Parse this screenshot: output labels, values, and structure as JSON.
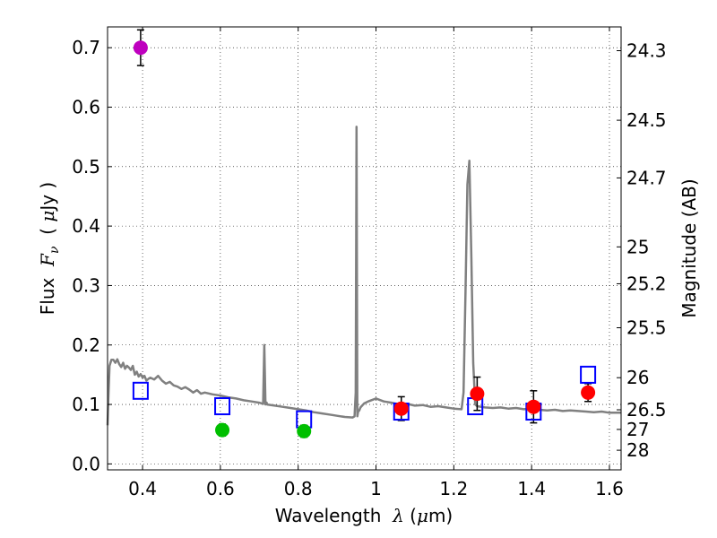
{
  "chart_data": {
    "type": "scatter",
    "xlabel_prefix": "Wavelength  ",
    "xlabel_symbol": "λ",
    "xlabel_unit_open": " (",
    "xlabel_unit_mu": "μ",
    "xlabel_unit_close": "m)",
    "ylabel_prefix": "Flux  ",
    "ylabel_symbol": "F",
    "ylabel_subscript": "ν",
    "ylabel_unit_open": "  ( ",
    "ylabel_unit_mu": "μ",
    "ylabel_unit_close": "Jy )",
    "y2label": "Magnitude (AB)",
    "xlim": [
      0.31,
      1.63
    ],
    "ylim": [
      -0.01,
      0.735
    ],
    "grid": true,
    "grid_style": "dotted",
    "x_ticks": [
      0.4,
      0.6,
      0.8,
      1.0,
      1.2,
      1.4,
      1.6
    ],
    "x_tick_labels": [
      "0.4",
      "0.6",
      "0.8",
      "1",
      "1.2",
      "1.4",
      "1.6"
    ],
    "y_ticks": [
      0.0,
      0.1,
      0.2,
      0.3,
      0.4,
      0.5,
      0.6,
      0.7
    ],
    "y_tick_labels": [
      "0.0",
      "0.1",
      "0.2",
      "0.3",
      "0.4",
      "0.5",
      "0.6",
      "0.7"
    ],
    "mag_ticks": [
      {
        "label": "24.3",
        "flux": 0.695
      },
      {
        "label": "24.5",
        "flux": 0.578
      },
      {
        "label": "24.7",
        "flux": 0.481
      },
      {
        "label": "25",
        "flux": 0.365
      },
      {
        "label": "25.2",
        "flux": 0.303
      },
      {
        "label": "25.5",
        "flux": 0.229
      },
      {
        "label": "26",
        "flux": 0.145
      },
      {
        "label": "26.5",
        "flux": 0.091
      },
      {
        "label": "27",
        "flux": 0.058
      },
      {
        "label": "28",
        "flux": 0.023
      }
    ],
    "spectrum": {
      "name": "model spectrum",
      "color": "#808080",
      "x": [
        0.31,
        0.312,
        0.315,
        0.32,
        0.325,
        0.33,
        0.335,
        0.34,
        0.345,
        0.35,
        0.355,
        0.36,
        0.365,
        0.37,
        0.375,
        0.38,
        0.385,
        0.39,
        0.395,
        0.4,
        0.405,
        0.41,
        0.415,
        0.42,
        0.43,
        0.44,
        0.45,
        0.46,
        0.47,
        0.48,
        0.49,
        0.5,
        0.51,
        0.52,
        0.53,
        0.54,
        0.55,
        0.56,
        0.58,
        0.6,
        0.62,
        0.64,
        0.66,
        0.68,
        0.7,
        0.71,
        0.713,
        0.716,
        0.719,
        0.72,
        0.74,
        0.76,
        0.78,
        0.8,
        0.82,
        0.84,
        0.86,
        0.88,
        0.9,
        0.92,
        0.94,
        0.945,
        0.948,
        0.95,
        0.952,
        0.954,
        0.957,
        0.96,
        0.97,
        0.98,
        1.0,
        1.02,
        1.04,
        1.06,
        1.08,
        1.1,
        1.12,
        1.14,
        1.16,
        1.18,
        1.2,
        1.22,
        1.225,
        1.23,
        1.235,
        1.24,
        1.245,
        1.25,
        1.255,
        1.26,
        1.28,
        1.3,
        1.32,
        1.34,
        1.36,
        1.38,
        1.4,
        1.42,
        1.44,
        1.46,
        1.48,
        1.5,
        1.52,
        1.54,
        1.56,
        1.58,
        1.6,
        1.63
      ],
      "y": [
        0.065,
        0.11,
        0.165,
        0.175,
        0.175,
        0.17,
        0.176,
        0.168,
        0.163,
        0.17,
        0.16,
        0.165,
        0.162,
        0.158,
        0.165,
        0.15,
        0.155,
        0.147,
        0.151,
        0.145,
        0.148,
        0.14,
        0.143,
        0.145,
        0.142,
        0.148,
        0.14,
        0.135,
        0.138,
        0.132,
        0.13,
        0.126,
        0.129,
        0.125,
        0.12,
        0.124,
        0.118,
        0.12,
        0.117,
        0.115,
        0.112,
        0.11,
        0.107,
        0.105,
        0.103,
        0.101,
        0.2,
        0.1,
        0.103,
        0.1,
        0.098,
        0.096,
        0.094,
        0.092,
        0.09,
        0.087,
        0.085,
        0.083,
        0.081,
        0.079,
        0.078,
        0.08,
        0.12,
        0.567,
        0.08,
        0.088,
        0.09,
        0.095,
        0.102,
        0.105,
        0.11,
        0.105,
        0.103,
        0.1,
        0.101,
        0.098,
        0.099,
        0.096,
        0.097,
        0.095,
        0.093,
        0.092,
        0.12,
        0.29,
        0.47,
        0.51,
        0.35,
        0.17,
        0.1,
        0.097,
        0.095,
        0.094,
        0.095,
        0.093,
        0.094,
        0.092,
        0.093,
        0.091,
        0.09,
        0.091,
        0.089,
        0.09,
        0.089,
        0.088,
        0.087,
        0.088,
        0.086,
        0.086
      ]
    },
    "points": [
      {
        "group": "magenta",
        "color": "#bf00bf",
        "x": 0.395,
        "y": 0.7,
        "yerr": 0.03,
        "marker": "circle"
      },
      {
        "group": "green",
        "color": "#00bf00",
        "x": 0.605,
        "y": 0.057,
        "yerr": 0.01,
        "marker": "circle"
      },
      {
        "group": "green",
        "color": "#00bf00",
        "x": 0.815,
        "y": 0.055,
        "yerr": 0.01,
        "marker": "circle"
      },
      {
        "group": "red",
        "color": "#ff0000",
        "x": 1.065,
        "y": 0.093,
        "yerr": 0.02,
        "marker": "circle"
      },
      {
        "group": "red",
        "color": "#ff0000",
        "x": 1.26,
        "y": 0.118,
        "yerr": 0.028,
        "marker": "circle"
      },
      {
        "group": "red",
        "color": "#ff0000",
        "x": 1.405,
        "y": 0.096,
        "yerr": 0.027,
        "marker": "circle"
      },
      {
        "group": "red",
        "color": "#ff0000",
        "x": 1.545,
        "y": 0.12,
        "yerr": 0.015,
        "marker": "circle"
      }
    ],
    "model_points": {
      "color": "#0000ff",
      "marker": "open-square",
      "x": [
        0.395,
        0.605,
        0.815,
        1.065,
        1.255,
        1.405,
        1.545
      ],
      "y": [
        0.123,
        0.097,
        0.075,
        0.088,
        0.097,
        0.088,
        0.15
      ]
    }
  }
}
